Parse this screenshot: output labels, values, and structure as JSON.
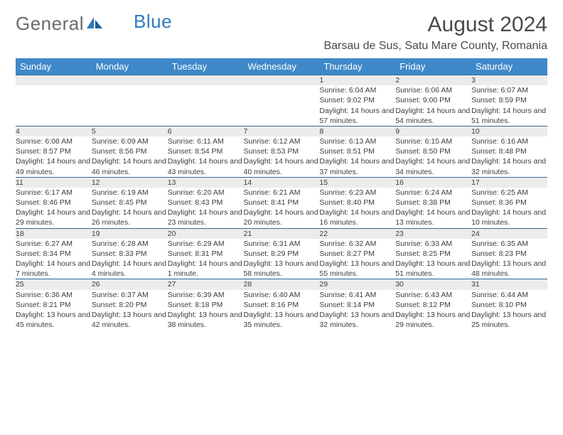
{
  "brand": {
    "word1": "General",
    "word2": "Blue"
  },
  "title": "August 2024",
  "location": "Barsau de Sus, Satu Mare County, Romania",
  "colors": {
    "header_bg": "#3f89c9",
    "header_text": "#ffffff",
    "daynum_bg": "#ececec",
    "row_border": "#2f6aa3",
    "body_text": "#3d3d3d",
    "brand_gray": "#6b6b6b",
    "brand_blue": "#2f7abf"
  },
  "weekdays": [
    "Sunday",
    "Monday",
    "Tuesday",
    "Wednesday",
    "Thursday",
    "Friday",
    "Saturday"
  ],
  "weeks": [
    [
      null,
      null,
      null,
      null,
      {
        "n": "1",
        "sr": "6:04 AM",
        "ss": "9:02 PM",
        "dl": "14 hours and 57 minutes."
      },
      {
        "n": "2",
        "sr": "6:06 AM",
        "ss": "9:00 PM",
        "dl": "14 hours and 54 minutes."
      },
      {
        "n": "3",
        "sr": "6:07 AM",
        "ss": "8:59 PM",
        "dl": "14 hours and 51 minutes."
      }
    ],
    [
      {
        "n": "4",
        "sr": "6:08 AM",
        "ss": "8:57 PM",
        "dl": "14 hours and 49 minutes."
      },
      {
        "n": "5",
        "sr": "6:09 AM",
        "ss": "8:56 PM",
        "dl": "14 hours and 46 minutes."
      },
      {
        "n": "6",
        "sr": "6:11 AM",
        "ss": "8:54 PM",
        "dl": "14 hours and 43 minutes."
      },
      {
        "n": "7",
        "sr": "6:12 AM",
        "ss": "8:53 PM",
        "dl": "14 hours and 40 minutes."
      },
      {
        "n": "8",
        "sr": "6:13 AM",
        "ss": "8:51 PM",
        "dl": "14 hours and 37 minutes."
      },
      {
        "n": "9",
        "sr": "6:15 AM",
        "ss": "8:50 PM",
        "dl": "14 hours and 34 minutes."
      },
      {
        "n": "10",
        "sr": "6:16 AM",
        "ss": "8:48 PM",
        "dl": "14 hours and 32 minutes."
      }
    ],
    [
      {
        "n": "11",
        "sr": "6:17 AM",
        "ss": "8:46 PM",
        "dl": "14 hours and 29 minutes."
      },
      {
        "n": "12",
        "sr": "6:19 AM",
        "ss": "8:45 PM",
        "dl": "14 hours and 26 minutes."
      },
      {
        "n": "13",
        "sr": "6:20 AM",
        "ss": "8:43 PM",
        "dl": "14 hours and 23 minutes."
      },
      {
        "n": "14",
        "sr": "6:21 AM",
        "ss": "8:41 PM",
        "dl": "14 hours and 20 minutes."
      },
      {
        "n": "15",
        "sr": "6:23 AM",
        "ss": "8:40 PM",
        "dl": "14 hours and 16 minutes."
      },
      {
        "n": "16",
        "sr": "6:24 AM",
        "ss": "8:38 PM",
        "dl": "14 hours and 13 minutes."
      },
      {
        "n": "17",
        "sr": "6:25 AM",
        "ss": "8:36 PM",
        "dl": "14 hours and 10 minutes."
      }
    ],
    [
      {
        "n": "18",
        "sr": "6:27 AM",
        "ss": "8:34 PM",
        "dl": "14 hours and 7 minutes."
      },
      {
        "n": "19",
        "sr": "6:28 AM",
        "ss": "8:33 PM",
        "dl": "14 hours and 4 minutes."
      },
      {
        "n": "20",
        "sr": "6:29 AM",
        "ss": "8:31 PM",
        "dl": "14 hours and 1 minute."
      },
      {
        "n": "21",
        "sr": "6:31 AM",
        "ss": "8:29 PM",
        "dl": "13 hours and 58 minutes."
      },
      {
        "n": "22",
        "sr": "6:32 AM",
        "ss": "8:27 PM",
        "dl": "13 hours and 55 minutes."
      },
      {
        "n": "23",
        "sr": "6:33 AM",
        "ss": "8:25 PM",
        "dl": "13 hours and 51 minutes."
      },
      {
        "n": "24",
        "sr": "6:35 AM",
        "ss": "8:23 PM",
        "dl": "13 hours and 48 minutes."
      }
    ],
    [
      {
        "n": "25",
        "sr": "6:36 AM",
        "ss": "8:21 PM",
        "dl": "13 hours and 45 minutes."
      },
      {
        "n": "26",
        "sr": "6:37 AM",
        "ss": "8:20 PM",
        "dl": "13 hours and 42 minutes."
      },
      {
        "n": "27",
        "sr": "6:39 AM",
        "ss": "8:18 PM",
        "dl": "13 hours and 38 minutes."
      },
      {
        "n": "28",
        "sr": "6:40 AM",
        "ss": "8:16 PM",
        "dl": "13 hours and 35 minutes."
      },
      {
        "n": "29",
        "sr": "6:41 AM",
        "ss": "8:14 PM",
        "dl": "13 hours and 32 minutes."
      },
      {
        "n": "30",
        "sr": "6:43 AM",
        "ss": "8:12 PM",
        "dl": "13 hours and 29 minutes."
      },
      {
        "n": "31",
        "sr": "6:44 AM",
        "ss": "8:10 PM",
        "dl": "13 hours and 25 minutes."
      }
    ]
  ],
  "labels": {
    "sunrise": "Sunrise: ",
    "sunset": "Sunset: ",
    "daylight": "Daylight: "
  }
}
